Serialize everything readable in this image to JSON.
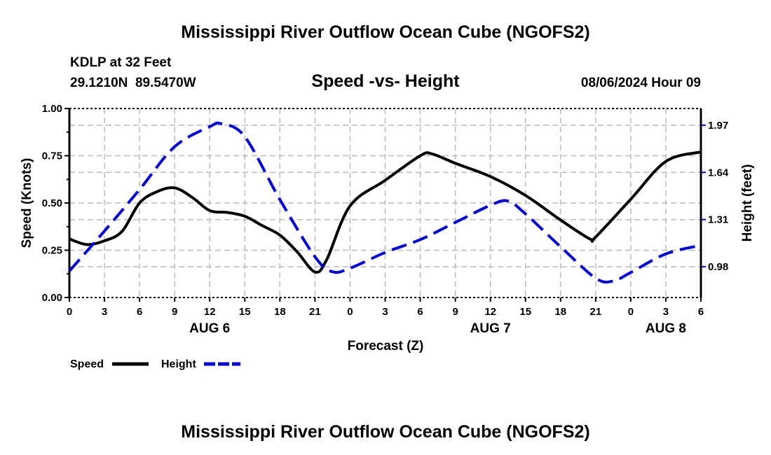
{
  "chart_data": {
    "type": "line",
    "title": "Mississippi River Outflow Ocean Cube (NGOFS2)",
    "footer_title": "Mississippi River Outflow Ocean Cube (NGOFS2)",
    "station": "KDLP at 32 Feet",
    "location": "29.1210N  89.5470W",
    "subtitle": "Speed -vs- Height",
    "datetime": "08/06/2024 Hour 09",
    "xlabel": "Forecast (Z)",
    "ylabel": "Speed (Knots)",
    "y2label": "Height (feet)",
    "xlim": [
      0,
      54
    ],
    "ylim": [
      0,
      1
    ],
    "y2lim": [
      0.765,
      2.087
    ],
    "x_tick_labels": [
      "0",
      "3",
      "6",
      "9",
      "12",
      "15",
      "18",
      "21",
      "0",
      "3",
      "6",
      "9",
      "12",
      "15",
      "18",
      "21",
      "0",
      "3",
      "6"
    ],
    "date_labels": [
      {
        "label": "AUG 6",
        "hour": 12
      },
      {
        "label": "AUG 7",
        "hour": 36
      },
      {
        "label": "AUG 8",
        "hour": 51
      }
    ],
    "y_ticks": [
      {
        "v": 0,
        "label": "0.00"
      },
      {
        "v": 0.25,
        "label": "0.25"
      },
      {
        "v": 0.5,
        "label": "0.50"
      },
      {
        "v": 0.75,
        "label": "0.75"
      },
      {
        "v": 1.0,
        "label": "1.00"
      }
    ],
    "y2_ticks": [
      {
        "v": 0.98,
        "label": "0.98"
      },
      {
        "v": 1.31,
        "label": "1.31"
      },
      {
        "v": 1.64,
        "label": "1.64"
      },
      {
        "v": 1.97,
        "label": "1.97"
      }
    ],
    "grid": true,
    "legend_position": "bottom-left",
    "series": [
      {
        "name": "Speed",
        "axis": "left",
        "color": "#000000",
        "style": "solid",
        "x": [
          0,
          1.5,
          3,
          4.5,
          6,
          7.5,
          9,
          10.5,
          12,
          13.5,
          15,
          16.5,
          18,
          19.5,
          21,
          22,
          24,
          27,
          30,
          31,
          33,
          36,
          39,
          42,
          44.5,
          45,
          48,
          51,
          54
        ],
        "y": [
          0.31,
          0.28,
          0.3,
          0.35,
          0.5,
          0.56,
          0.58,
          0.53,
          0.46,
          0.45,
          0.43,
          0.38,
          0.33,
          0.24,
          0.135,
          0.2,
          0.485,
          0.62,
          0.75,
          0.76,
          0.71,
          0.64,
          0.54,
          0.41,
          0.31,
          0.32,
          0.52,
          0.72,
          0.77
        ]
      },
      {
        "name": "Height",
        "axis": "right",
        "color": "#0000dd",
        "style": "dashed",
        "x": [
          0,
          3,
          6,
          9,
          12,
          13,
          15,
          18,
          21,
          22.5,
          24,
          27,
          30,
          33,
          36,
          37.5,
          39,
          42,
          45,
          46.5,
          48,
          51,
          54
        ],
        "y": [
          0.95,
          1.23,
          1.52,
          1.82,
          1.96,
          1.98,
          1.89,
          1.45,
          1.05,
          0.945,
          0.97,
          1.08,
          1.17,
          1.29,
          1.41,
          1.44,
          1.35,
          1.12,
          0.9,
          0.88,
          0.94,
          1.07,
          1.13
        ]
      }
    ]
  }
}
